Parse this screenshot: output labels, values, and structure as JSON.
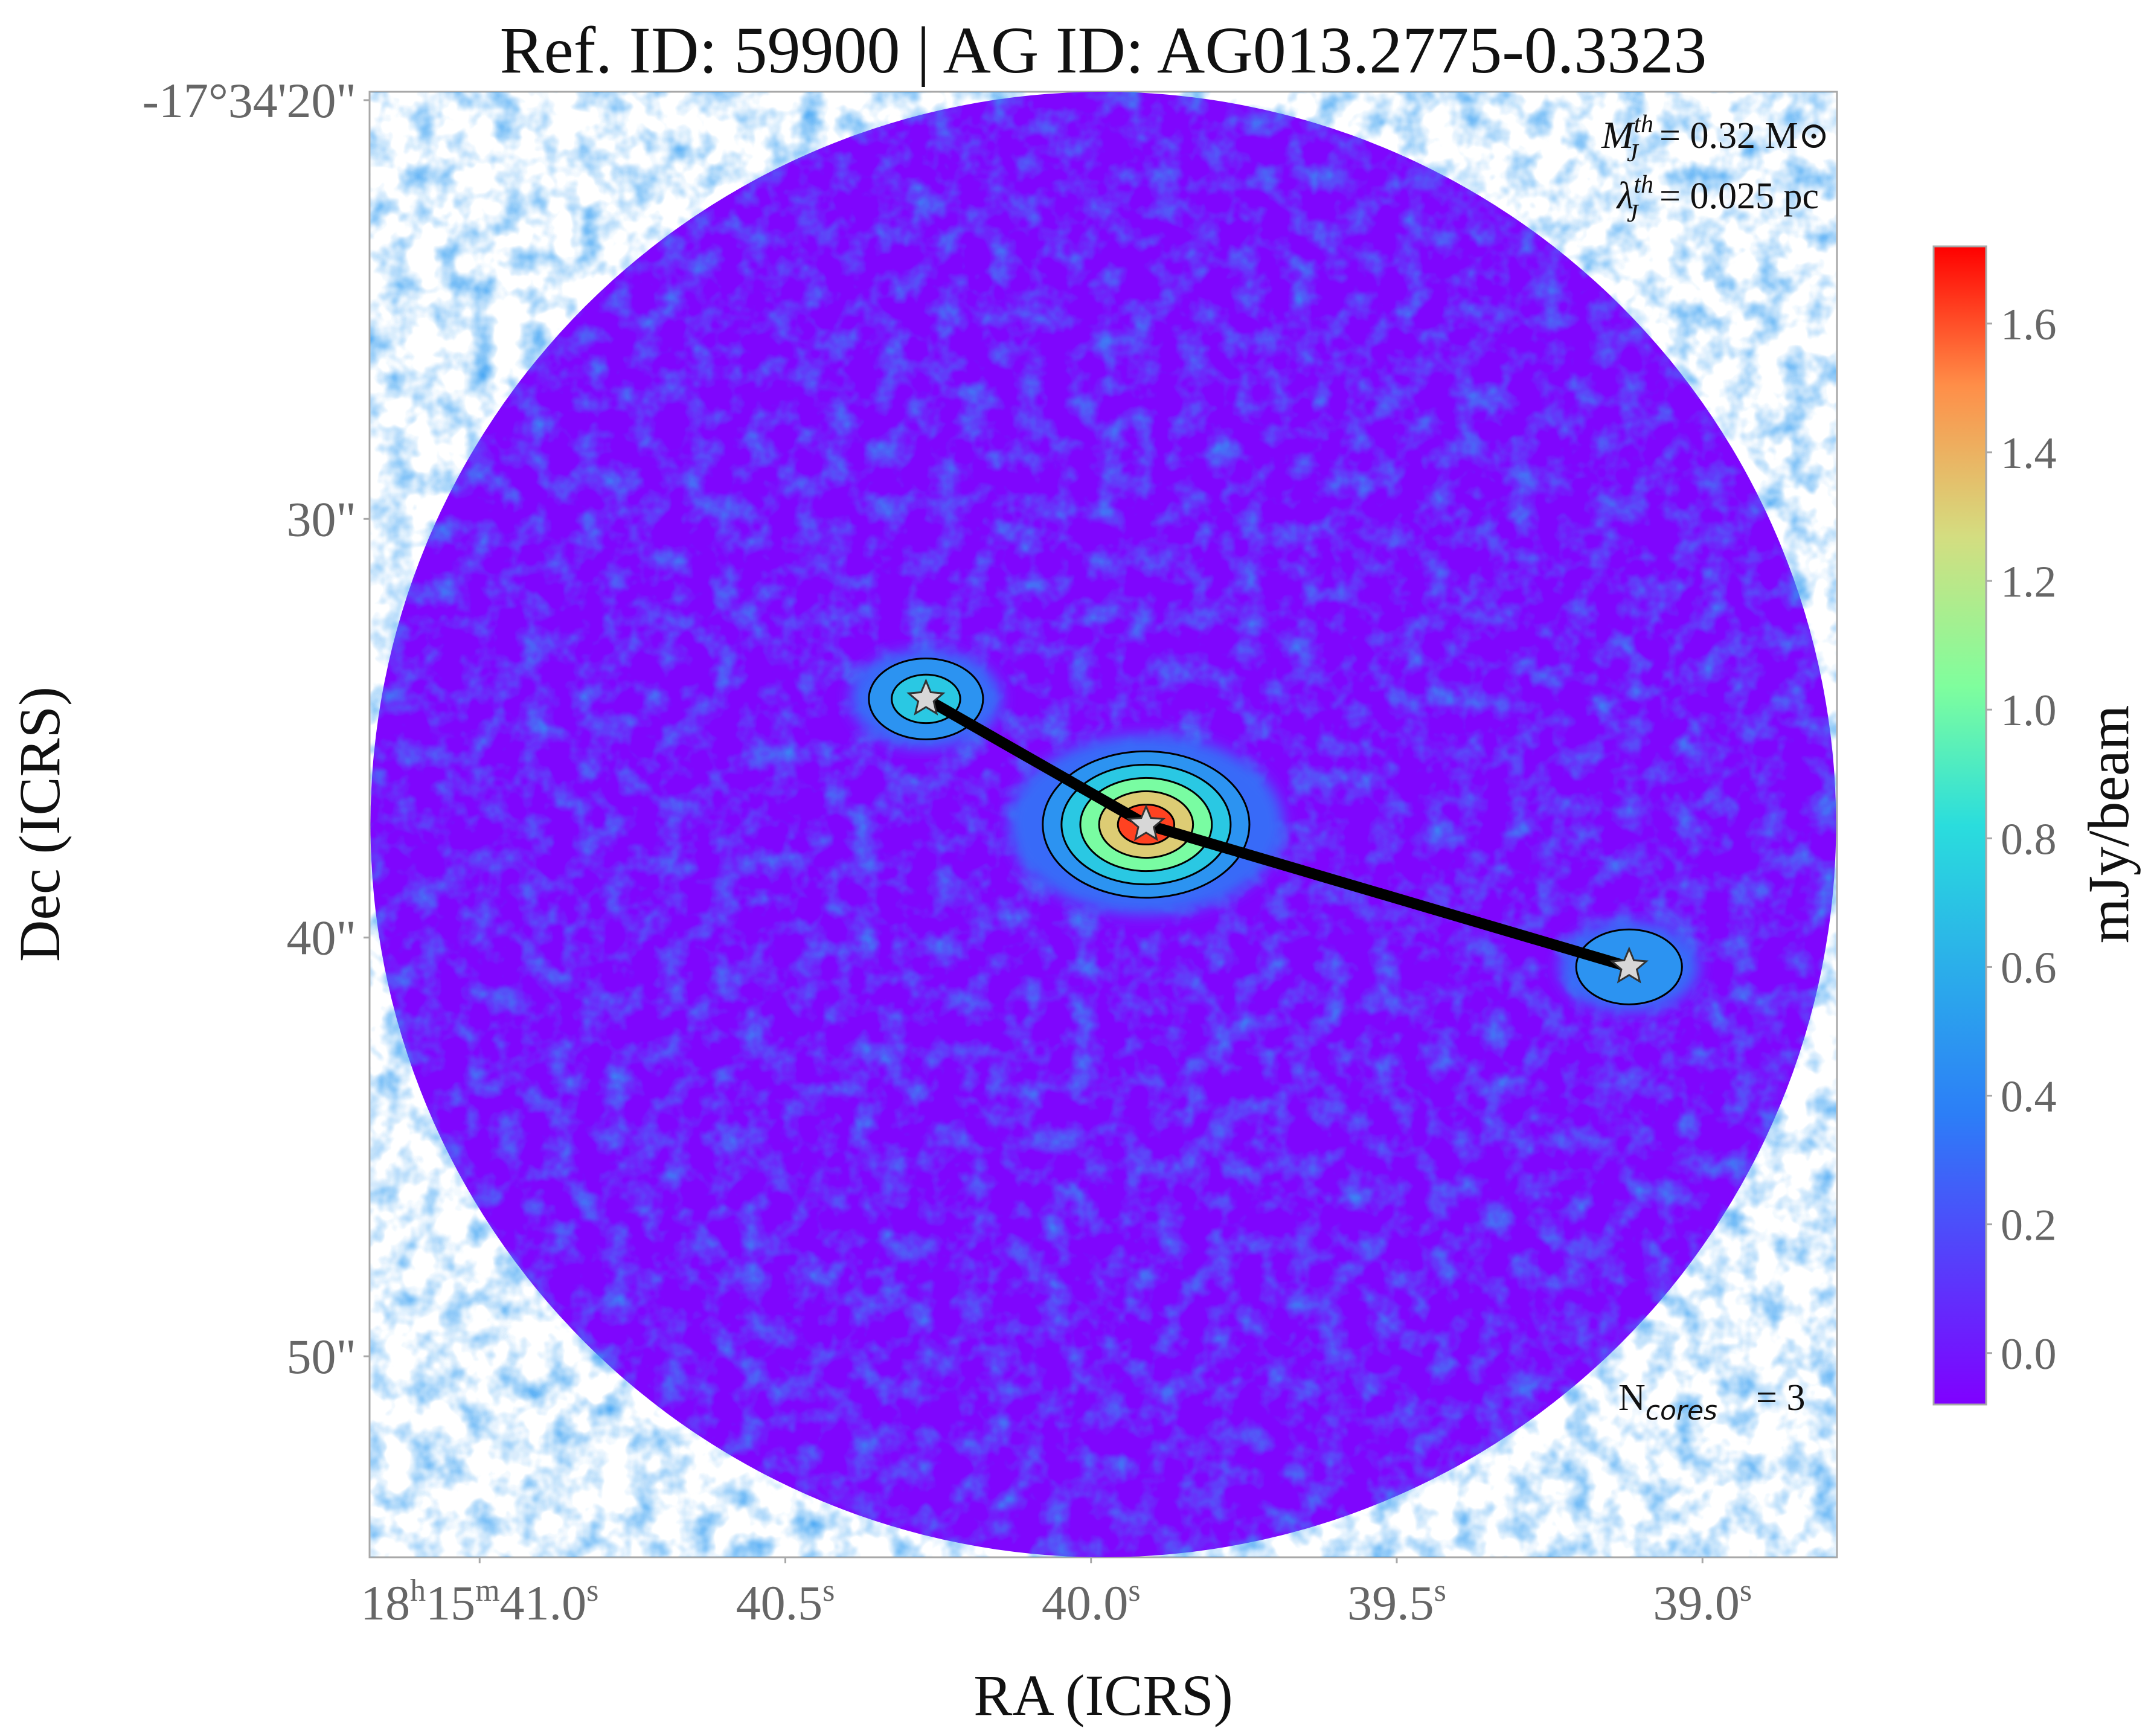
{
  "chart_data": {
    "type": "heatmap",
    "title": "Ref. ID: 59900 | AG ID: AG013.2775-0.3323",
    "xlabel": "RA (ICRS)",
    "ylabel": "Dec (ICRS)",
    "x_ticks": [
      {
        "value": 41.0,
        "parts": [
          [
            "18",
            ""
          ],
          [
            "h",
            "sup"
          ],
          [
            "15",
            ""
          ],
          [
            "m",
            "sup"
          ],
          [
            "41.0",
            ""
          ],
          [
            "s",
            "sup"
          ]
        ]
      },
      {
        "value": 40.5,
        "parts": [
          [
            "40.5",
            ""
          ],
          [
            "s",
            "sup"
          ]
        ]
      },
      {
        "value": 40.0,
        "parts": [
          [
            "40.0",
            ""
          ],
          [
            "s",
            "sup"
          ]
        ]
      },
      {
        "value": 39.5,
        "parts": [
          [
            "39.5",
            ""
          ],
          [
            "s",
            "sup"
          ]
        ]
      },
      {
        "value": 39.0,
        "parts": [
          [
            "39.0",
            ""
          ],
          [
            "s",
            "sup"
          ]
        ]
      }
    ],
    "y_ticks": [
      {
        "value": 20,
        "label": "-17°34'20\""
      },
      {
        "value": 30,
        "label": "30\""
      },
      {
        "value": 40,
        "label": "40\""
      },
      {
        "value": 50,
        "label": "50\""
      }
    ],
    "xlim_ra_seconds": [
      41.18,
      38.78
    ],
    "ylim_dec_arcsec": [
      19.8,
      54.8
    ],
    "field_center": {
      "ra_s": 39.98,
      "dec_arcsec": 37.3
    },
    "field_radius_arcsec": 17.5,
    "colorbar": {
      "label": "mJy/beam",
      "min": -0.08,
      "max": 1.72,
      "ticks": [
        "0.0",
        "0.2",
        "0.4",
        "0.6",
        "0.8",
        "1.0",
        "1.2",
        "1.4",
        "1.6"
      ],
      "tick_values": [
        0.0,
        0.2,
        0.4,
        0.6,
        0.8,
        1.0,
        1.2,
        1.4,
        1.6
      ],
      "colormap": "rainbow"
    },
    "cores": [
      {
        "id": 1,
        "ra_s": 40.27,
        "dec_arcsec": 34.3,
        "peak_mJy": 0.6
      },
      {
        "id": 2,
        "ra_s": 39.91,
        "dec_arcsec": 37.3,
        "peak_mJy": 1.7
      },
      {
        "id": 3,
        "ra_s": 39.12,
        "dec_arcsec": 40.7,
        "peak_mJy": 0.5
      }
    ],
    "mst_edges": [
      [
        1,
        2
      ],
      [
        2,
        3
      ]
    ],
    "annotations": {
      "mass_label": "= 0.32 M⊙",
      "length_label": "= 0.025 pc",
      "ncores_value": "= 3"
    },
    "grid": false,
    "background_level_mJy": 0.0
  }
}
